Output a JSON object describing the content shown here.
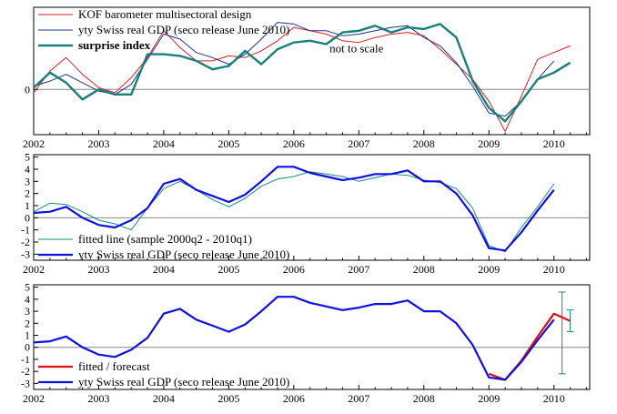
{
  "colors": {
    "kof": "#d62020",
    "gdp_thin": "#1f2f8f",
    "surprise": "#17807a",
    "fitted": "#1a8a80",
    "gdp_thick": "#1010e0",
    "forecast": "#e01010",
    "band": "#1a8a80",
    "zero": "#888888"
  },
  "chart_data": [
    {
      "type": "line",
      "title": "",
      "xlim": [
        2002.0,
        2010.55
      ],
      "ylim": [
        -1.35,
        2.45
      ],
      "x_ticks": [
        "2002",
        "2003",
        "2004",
        "2005",
        "2006",
        "2007",
        "2008",
        "2009",
        "2010"
      ],
      "y_ticks": [
        "0"
      ],
      "annotation": "not to scale",
      "series": [
        {
          "name": "KOF barometer multisectoral design",
          "color": "kof",
          "width": 1,
          "x": [
            2002.0,
            2002.25,
            2002.5,
            2002.75,
            2003.0,
            2003.25,
            2003.5,
            2003.75,
            2004.0,
            2004.25,
            2004.5,
            2004.75,
            2005.0,
            2005.25,
            2005.5,
            2005.75,
            2006.0,
            2006.25,
            2006.5,
            2006.75,
            2007.0,
            2007.25,
            2007.5,
            2007.75,
            2008.0,
            2008.25,
            2008.5,
            2008.75,
            2009.0,
            2009.25,
            2009.5,
            2009.75,
            2010.0,
            2010.25
          ],
          "y": [
            -0.1,
            0.55,
            0.95,
            0.45,
            0.05,
            -0.1,
            0.35,
            0.95,
            1.75,
            1.25,
            0.85,
            0.85,
            1.0,
            0.95,
            1.15,
            1.45,
            1.85,
            1.75,
            1.65,
            1.45,
            1.4,
            1.55,
            1.65,
            1.7,
            1.6,
            1.2,
            0.75,
            0.3,
            -0.35,
            -1.25,
            -0.2,
            0.9,
            1.1,
            1.3
          ]
        },
        {
          "name": "yty Swiss real GDP (seco release June 2010)",
          "color": "gdp_thin",
          "width": 1,
          "x": [
            2002.0,
            2002.25,
            2002.5,
            2002.75,
            2003.0,
            2003.25,
            2003.5,
            2003.75,
            2004.0,
            2004.25,
            2004.5,
            2004.75,
            2005.0,
            2005.25,
            2005.5,
            2005.75,
            2006.0,
            2006.25,
            2006.5,
            2006.75,
            2007.0,
            2007.25,
            2007.5,
            2007.75,
            2008.0,
            2008.25,
            2008.5,
            2008.75,
            2009.0,
            2009.25,
            2009.5,
            2009.75,
            2010.0
          ],
          "y": [
            0.1,
            0.25,
            0.45,
            0.2,
            -0.05,
            -0.15,
            0.15,
            0.9,
            1.65,
            1.5,
            1.1,
            0.95,
            0.75,
            1.05,
            1.5,
            2.0,
            1.95,
            1.75,
            1.75,
            1.6,
            1.65,
            1.75,
            1.85,
            1.9,
            1.55,
            1.3,
            0.8,
            0.1,
            -0.7,
            -0.8,
            -0.35,
            0.3,
            0.85
          ]
        },
        {
          "name": "surprise index",
          "color": "surprise",
          "width": 2.4,
          "bold": true,
          "x": [
            2002.0,
            2002.25,
            2002.5,
            2002.75,
            2003.0,
            2003.25,
            2003.5,
            2003.75,
            2004.0,
            2004.25,
            2004.5,
            2004.75,
            2005.0,
            2005.25,
            2005.5,
            2005.75,
            2006.0,
            2006.25,
            2006.5,
            2006.75,
            2007.0,
            2007.25,
            2007.5,
            2007.75,
            2008.0,
            2008.25,
            2008.5,
            2008.75,
            2009.0,
            2009.25,
            2009.5,
            2009.75,
            2010.0,
            2010.25
          ],
          "y": [
            0.05,
            0.5,
            0.2,
            -0.3,
            0.0,
            -0.15,
            -0.15,
            1.05,
            1.05,
            1.0,
            0.85,
            0.6,
            0.7,
            1.15,
            0.75,
            1.2,
            1.4,
            1.45,
            1.35,
            1.7,
            1.75,
            1.9,
            1.7,
            1.85,
            1.8,
            1.95,
            1.55,
            0.25,
            -0.55,
            -0.95,
            -0.35,
            0.3,
            0.5,
            0.8
          ]
        }
      ]
    },
    {
      "type": "line",
      "title": "",
      "xlim": [
        2002.0,
        2010.55
      ],
      "ylim": [
        -3.5,
        5.2
      ],
      "x_ticks": [
        "2002",
        "2003",
        "2004",
        "2005",
        "2006",
        "2007",
        "2008",
        "2009",
        "2010"
      ],
      "y_ticks": [
        "-3",
        "-2",
        "-1",
        "0",
        "1",
        "2",
        "3",
        "4",
        "5"
      ],
      "series": [
        {
          "name": "fitted line (sample 2000q2 - 2010q1)",
          "color": "fitted",
          "width": 1,
          "x": [
            2002.0,
            2002.25,
            2002.5,
            2002.75,
            2003.0,
            2003.25,
            2003.5,
            2003.75,
            2004.0,
            2004.25,
            2004.5,
            2004.75,
            2005.0,
            2005.25,
            2005.5,
            2005.75,
            2006.0,
            2006.25,
            2006.5,
            2006.75,
            2007.0,
            2007.25,
            2007.5,
            2007.75,
            2008.0,
            2008.25,
            2008.5,
            2008.75,
            2009.0,
            2009.25,
            2009.5,
            2009.75,
            2010.0
          ],
          "y": [
            0.5,
            1.2,
            1.1,
            0.5,
            -0.2,
            -0.5,
            -1.0,
            0.8,
            2.4,
            3.0,
            2.3,
            1.5,
            0.9,
            1.6,
            2.6,
            3.2,
            3.4,
            3.8,
            3.6,
            3.4,
            3.0,
            3.3,
            3.6,
            3.5,
            3.1,
            2.9,
            2.4,
            0.8,
            -2.3,
            -2.8,
            -0.8,
            0.9,
            2.8
          ]
        },
        {
          "name": "yty Swiss real GDP (seco release June 2010)",
          "color": "gdp_thick",
          "width": 2.2,
          "x": [
            2002.0,
            2002.25,
            2002.5,
            2002.75,
            2003.0,
            2003.25,
            2003.5,
            2003.75,
            2004.0,
            2004.25,
            2004.5,
            2004.75,
            2005.0,
            2005.25,
            2005.5,
            2005.75,
            2006.0,
            2006.25,
            2006.5,
            2006.75,
            2007.0,
            2007.25,
            2007.5,
            2007.75,
            2008.0,
            2008.25,
            2008.5,
            2008.75,
            2009.0,
            2009.25,
            2009.5,
            2009.75,
            2010.0
          ],
          "y": [
            0.4,
            0.5,
            0.9,
            0.0,
            -0.6,
            -0.8,
            -0.2,
            0.8,
            2.8,
            3.2,
            2.3,
            1.8,
            1.3,
            1.9,
            3.0,
            4.2,
            4.2,
            3.7,
            3.4,
            3.1,
            3.3,
            3.6,
            3.6,
            3.9,
            3.0,
            3.0,
            2.0,
            0.2,
            -2.5,
            -2.7,
            -1.2,
            0.6,
            2.3
          ]
        }
      ]
    },
    {
      "type": "line",
      "title": "",
      "xlim": [
        2002.0,
        2010.55
      ],
      "ylim": [
        -3.5,
        5.2
      ],
      "x_ticks": [
        "2002",
        "2003",
        "2004",
        "2005",
        "2006",
        "2007",
        "2008",
        "2009",
        "2010"
      ],
      "y_ticks": [
        "-3",
        "-2",
        "-1",
        "0",
        "1",
        "2",
        "3",
        "4",
        "5"
      ],
      "series": [
        {
          "name": "fitted / forecast",
          "color": "forecast",
          "width": 2.2,
          "x": [
            2009.0,
            2009.25,
            2009.5,
            2009.75,
            2010.0,
            2010.25
          ],
          "y": [
            -2.2,
            -2.7,
            -1.1,
            0.9,
            2.8,
            2.2
          ]
        },
        {
          "name": "yty Swiss real GDP (seco release June 2010)",
          "color": "gdp_thick",
          "width": 2.2,
          "x": [
            2002.0,
            2002.25,
            2002.5,
            2002.75,
            2003.0,
            2003.25,
            2003.5,
            2003.75,
            2004.0,
            2004.25,
            2004.5,
            2004.75,
            2005.0,
            2005.25,
            2005.5,
            2005.75,
            2006.0,
            2006.25,
            2006.5,
            2006.75,
            2007.0,
            2007.25,
            2007.5,
            2007.75,
            2008.0,
            2008.25,
            2008.5,
            2008.75,
            2009.0,
            2009.25,
            2009.5,
            2009.75,
            2010.0
          ],
          "y": [
            0.4,
            0.5,
            0.9,
            0.0,
            -0.6,
            -0.8,
            -0.2,
            0.8,
            2.8,
            3.2,
            2.3,
            1.8,
            1.3,
            1.9,
            3.0,
            4.2,
            4.2,
            3.7,
            3.4,
            3.1,
            3.3,
            3.6,
            3.6,
            3.9,
            3.0,
            3.0,
            2.0,
            0.2,
            -2.5,
            -2.7,
            -1.2,
            0.6,
            2.3
          ]
        }
      ],
      "intervals": [
        {
          "x": 2010.125,
          "low": -2.2,
          "high": 4.6,
          "color": "band"
        },
        {
          "x": 2010.25,
          "low": 1.3,
          "high": 3.1,
          "color": "band"
        }
      ]
    }
  ]
}
